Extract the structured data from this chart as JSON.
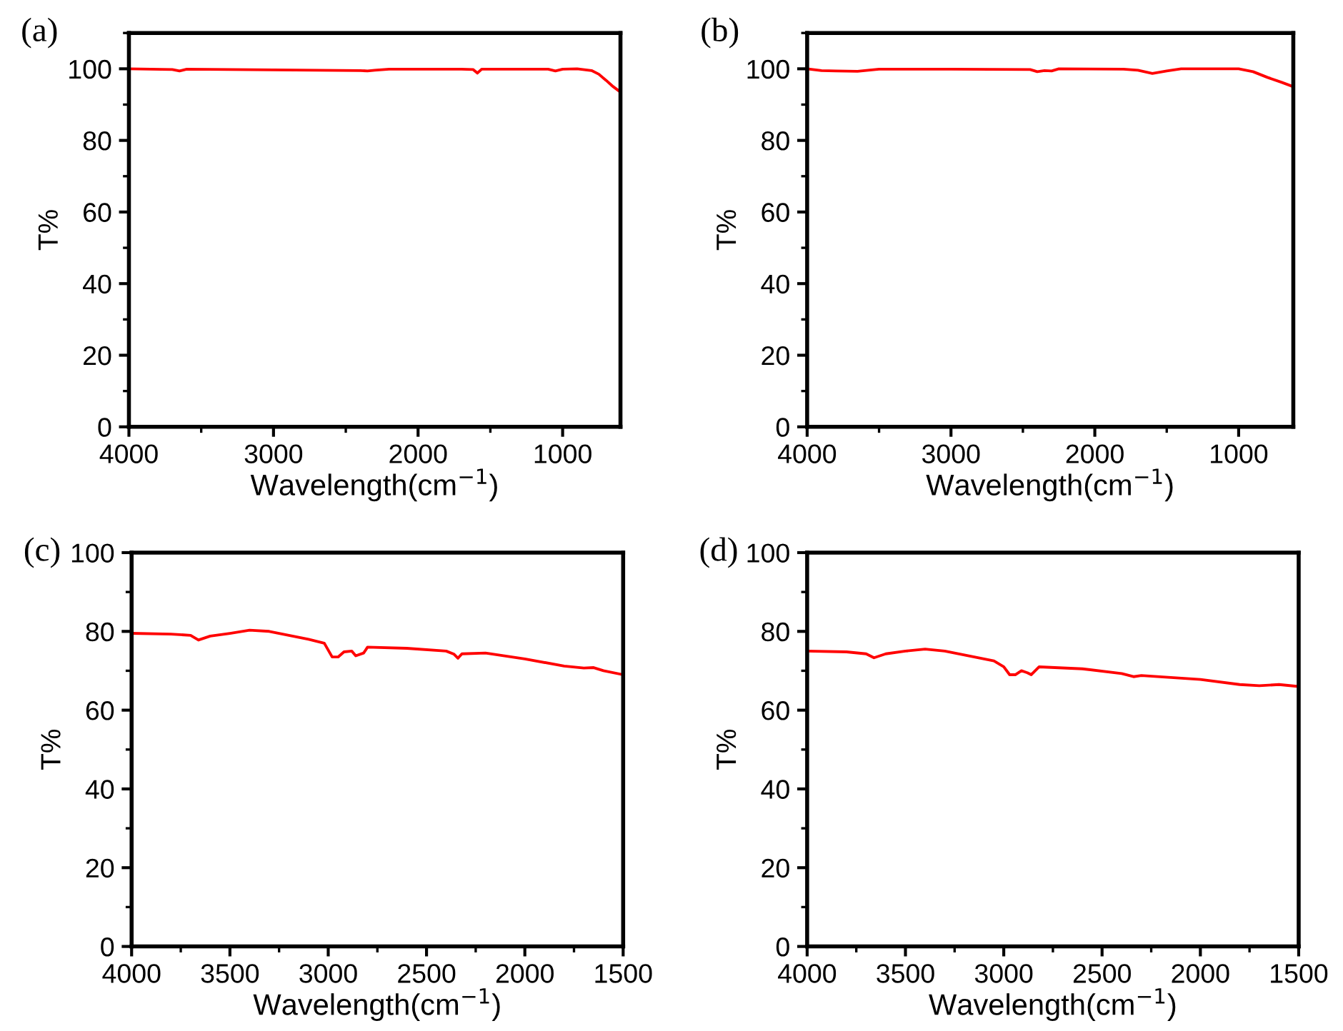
{
  "chart_data": [
    {
      "type": "line",
      "title": "(a)",
      "xlabel": "Wavelength(cm$^{−1}$)",
      "ylabel": "T%",
      "xlim": [
        4000,
        600
      ],
      "xticks": [
        4000,
        3000,
        2000,
        1000
      ],
      "ylim": [
        0,
        110
      ],
      "yticks": [
        0,
        20,
        40,
        60,
        80,
        100
      ],
      "grid": false,
      "legend": false,
      "series": [
        {
          "color": "#ff0000",
          "x": [
            4000,
            3700,
            3650,
            3600,
            3000,
            2400,
            2350,
            2300,
            2200,
            1700,
            1620,
            1590,
            1560,
            1100,
            1050,
            1000,
            900,
            800,
            750,
            700,
            650,
            600
          ],
          "values": [
            100,
            99.8,
            99.4,
            99.9,
            99.7,
            99.5,
            99.4,
            99.6,
            99.9,
            99.9,
            99.8,
            98.8,
            99.9,
            99.9,
            99.4,
            99.9,
            100,
            99.5,
            98.5,
            96.8,
            95,
            93.5
          ]
        }
      ]
    },
    {
      "type": "line",
      "title": "(b)",
      "xlabel": "Wavelength(cm$^{−1}$)",
      "ylabel": "T%",
      "xlim": [
        4000,
        620
      ],
      "xticks": [
        4000,
        3000,
        2000,
        1000
      ],
      "ylim": [
        0,
        110
      ],
      "yticks": [
        0,
        20,
        40,
        60,
        80,
        100
      ],
      "grid": false,
      "legend": false,
      "series": [
        {
          "color": "#ff0000",
          "x": [
            4000,
            3900,
            3800,
            3650,
            3500,
            3000,
            2450,
            2400,
            2350,
            2300,
            2250,
            1800,
            1700,
            1600,
            1500,
            1400,
            1000,
            900,
            800,
            700,
            620
          ],
          "values": [
            100,
            99.5,
            99.4,
            99.3,
            99.9,
            99.9,
            99.8,
            99.2,
            99.5,
            99.4,
            100,
            99.9,
            99.6,
            98.7,
            99.4,
            100,
            100,
            99.2,
            97.6,
            96.2,
            95
          ]
        }
      ]
    },
    {
      "type": "line",
      "title": "(c)",
      "xlabel": "Wavelength(cm$^{−1}$)",
      "ylabel": "T%",
      "xlim": [
        4000,
        1500
      ],
      "xticks": [
        4000,
        3500,
        3000,
        2500,
        2000,
        1500
      ],
      "ylim": [
        0,
        100
      ],
      "yticks": [
        0,
        20,
        40,
        60,
        80,
        100
      ],
      "grid": false,
      "legend": false,
      "series": [
        {
          "color": "#ff0000",
          "x": [
            4000,
            3800,
            3700,
            3660,
            3600,
            3500,
            3400,
            3300,
            3100,
            3020,
            2980,
            2950,
            2920,
            2880,
            2860,
            2820,
            2800,
            2600,
            2400,
            2360,
            2340,
            2320,
            2200,
            2000,
            1800,
            1700,
            1650,
            1600,
            1500
          ],
          "values": [
            79.5,
            79.3,
            79,
            77.8,
            78.8,
            79.5,
            80.3,
            80,
            78,
            77,
            73.5,
            73.5,
            74.8,
            75,
            73.8,
            74.5,
            76,
            75.7,
            75,
            74.2,
            73.2,
            74.3,
            74.5,
            73,
            71.2,
            70.7,
            70.8,
            70,
            69
          ]
        }
      ]
    },
    {
      "type": "line",
      "title": "(d)",
      "xlabel": "Wavelength(cm$^{−1}$)",
      "ylabel": "T%",
      "xlim": [
        4000,
        1500
      ],
      "xticks": [
        4000,
        3500,
        3000,
        2500,
        2000,
        1500
      ],
      "ylim": [
        0,
        100
      ],
      "yticks": [
        0,
        20,
        40,
        60,
        80,
        100
      ],
      "grid": false,
      "legend": false,
      "series": [
        {
          "color": "#ff0000",
          "x": [
            4000,
            3800,
            3700,
            3660,
            3600,
            3500,
            3400,
            3300,
            3050,
            3000,
            2970,
            2940,
            2910,
            2880,
            2860,
            2820,
            2600,
            2400,
            2340,
            2300,
            2000,
            1800,
            1700,
            1600,
            1500
          ],
          "values": [
            75,
            74.8,
            74.3,
            73.3,
            74.3,
            75,
            75.5,
            75,
            72.5,
            71,
            69,
            69,
            70,
            69.5,
            69,
            71,
            70.5,
            69.3,
            68.5,
            68.8,
            67.8,
            66.5,
            66.2,
            66.5,
            66
          ]
        }
      ]
    }
  ]
}
